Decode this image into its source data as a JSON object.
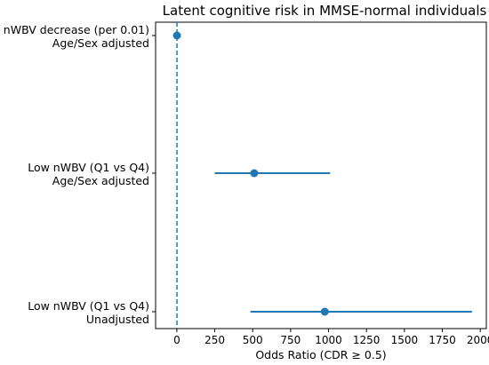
{
  "chart_data": {
    "type": "forest",
    "title": "Latent cognitive risk in MMSE-normal individuals",
    "xlabel": "Odds Ratio (CDR ≥ 0.5)",
    "ylabel": "",
    "xlim": [
      -140,
      2040
    ],
    "xticks": [
      0,
      250,
      500,
      750,
      1000,
      1250,
      1500,
      1750,
      2000
    ],
    "reference_line_x": 1,
    "series_color": "#1f77b4",
    "rows": [
      {
        "label_line1": "nWBV decrease (per 0.01)",
        "label_line2": "Age/Sex adjusted",
        "or": 1.0,
        "ci_low": 1.0,
        "ci_high": 1.0
      },
      {
        "label_line1": "Low nWBV (Q1 vs Q4)",
        "label_line2": "Age/Sex adjusted",
        "or": 510,
        "ci_low": 250,
        "ci_high": 1010
      },
      {
        "label_line1": "Low nWBV (Q1 vs Q4)",
        "label_line2": "Unadjusted",
        "or": 975,
        "ci_low": 485,
        "ci_high": 1945
      }
    ]
  }
}
